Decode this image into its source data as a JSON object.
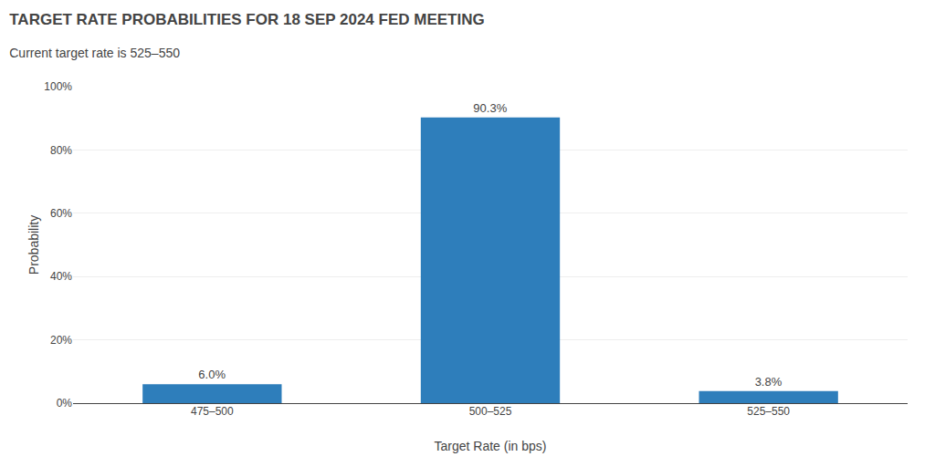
{
  "chart_data": {
    "type": "bar",
    "title": "TARGET RATE PROBABILITIES FOR 18 SEP 2024 FED MEETING",
    "subtitle": "Current target rate is 525–550",
    "categories": [
      "475–500",
      "500–525",
      "525–550"
    ],
    "values": [
      6.0,
      90.3,
      3.8
    ],
    "value_labels": [
      "6.0%",
      "90.3%",
      "3.8%"
    ],
    "data_labels": true,
    "color": "#2e7ebb",
    "xlabel": "Target Rate (in bps)",
    "ylabel": "Probability",
    "ylim": [
      0,
      100
    ],
    "yticks": [
      {
        "value": 0,
        "label": "0%"
      },
      {
        "value": 20,
        "label": "20%"
      },
      {
        "value": 40,
        "label": "40%"
      },
      {
        "value": 60,
        "label": "60%"
      },
      {
        "value": 80,
        "label": "80%"
      },
      {
        "value": 100,
        "label": "100%"
      }
    ],
    "grid": true
  }
}
